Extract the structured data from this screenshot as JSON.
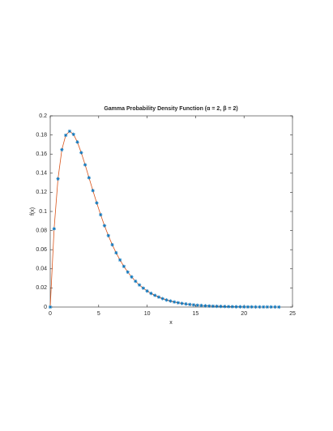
{
  "chart_data": {
    "type": "line",
    "title": "Gamma Probability Density Function (α = 2, β = 2)",
    "x_label": "x",
    "y_label": "f(x)",
    "x": [
      0,
      0.4,
      0.8,
      1.2,
      1.6,
      2,
      2.4,
      2.8,
      3.2,
      3.6,
      4,
      4.4,
      4.8,
      5.2,
      5.6,
      6,
      6.4,
      6.8,
      7.2,
      7.6,
      8,
      8.4,
      8.8,
      9.2,
      9.6,
      10,
      10.4,
      10.8,
      11.2,
      11.6,
      12,
      12.4,
      12.8,
      13.2,
      13.6,
      14,
      14.4,
      14.8,
      15.2,
      15.6,
      16,
      16.4,
      16.8,
      17.2,
      17.6,
      18,
      18.4,
      18.8,
      19.2,
      19.6,
      20,
      20.4,
      20.8,
      21.2,
      21.6,
      22,
      22.4,
      22.8,
      23.2,
      23.6
    ],
    "series": [
      {
        "line_color": "#d95319",
        "marker_color": "#0072bd",
        "marker": "asterisk",
        "values": [
          0,
          0.0819,
          0.1341,
          0.1646,
          0.1797,
          0.1839,
          0.1807,
          0.1726,
          0.1615,
          0.1488,
          0.1353,
          0.1219,
          0.1089,
          0.0966,
          0.0851,
          0.0747,
          0.0652,
          0.0567,
          0.0492,
          0.0425,
          0.0366,
          0.0315,
          0.027,
          0.0231,
          0.0198,
          0.0168,
          0.0143,
          0.0122,
          0.0104,
          0.0088,
          0.0074,
          0.0063,
          0.0053,
          0.0045,
          0.0038,
          0.0032,
          0.0027,
          0.0023,
          0.0019,
          0.0016,
          0.0013,
          0.0011,
          0.0009,
          0.0008,
          0.0007,
          0.0006,
          0.0005,
          0.0004,
          0.0003,
          0.0003,
          0.0002,
          0.0002,
          0.0002,
          0.0001,
          0.0001,
          0.0001,
          0.0001,
          0.0001,
          0.0001,
          0.0
        ]
      }
    ],
    "xlim": [
      0,
      25
    ],
    "xticks": [
      0,
      5,
      10,
      15,
      20,
      25
    ],
    "ylim": [
      0,
      0.2
    ],
    "yticks": [
      0,
      0.02,
      0.04,
      0.06,
      0.08,
      0.1,
      0.12,
      0.14,
      0.16,
      0.18,
      0.2
    ],
    "grid": false
  }
}
